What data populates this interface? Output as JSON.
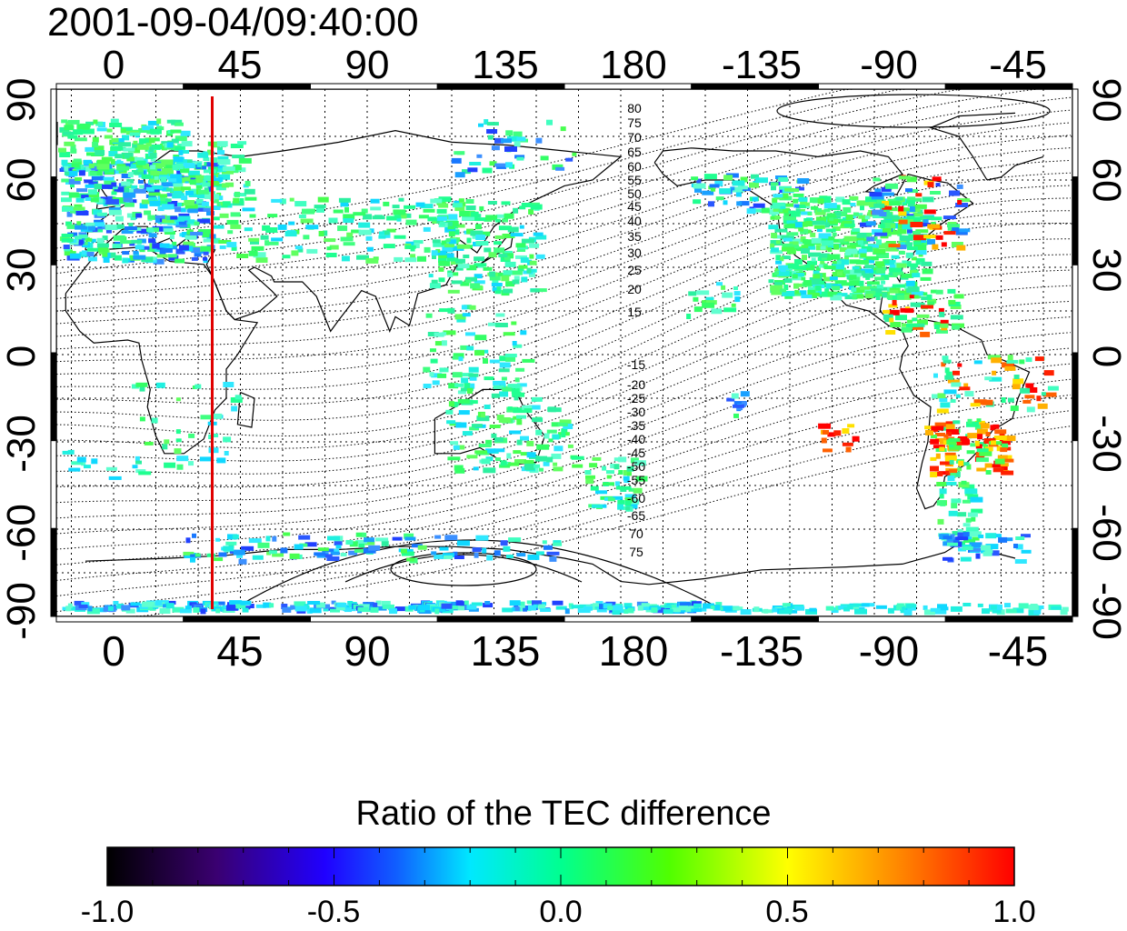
{
  "title": "2001-09-04/09:40:00",
  "map": {
    "x_ticks": [
      "0",
      "45",
      "90",
      "135",
      "180",
      "-135",
      "-90",
      "-45"
    ],
    "y_ticks": [
      "90",
      "60",
      "30",
      "0",
      "-30",
      "-60",
      "-90"
    ],
    "north_contour_labels": [
      "80",
      "75",
      "70",
      "65",
      "60",
      "55",
      "50",
      "45",
      "40",
      "35",
      "30",
      "25",
      "20",
      "15"
    ],
    "south_contour_labels": [
      "-15",
      "-20",
      "-25",
      "-30",
      "-35",
      "-40",
      "-45",
      "-50",
      "-55",
      "-60",
      "-65",
      "70",
      "75"
    ],
    "marker_line_color": "#e00000",
    "marker_line_longitude": 35
  },
  "colorbar": {
    "title": "Ratio of the TEC difference",
    "ticks": [
      "-1.0",
      "-0.5",
      "0.0",
      "0.5",
      "1.0"
    ],
    "colors": [
      "#000000",
      "#2a0060",
      "#2000c0",
      "#1050ff",
      "#00e8ff",
      "#00ff90",
      "#30ff00",
      "#c0ff00",
      "#ffff00",
      "#ff8000",
      "#ff1000"
    ]
  }
}
